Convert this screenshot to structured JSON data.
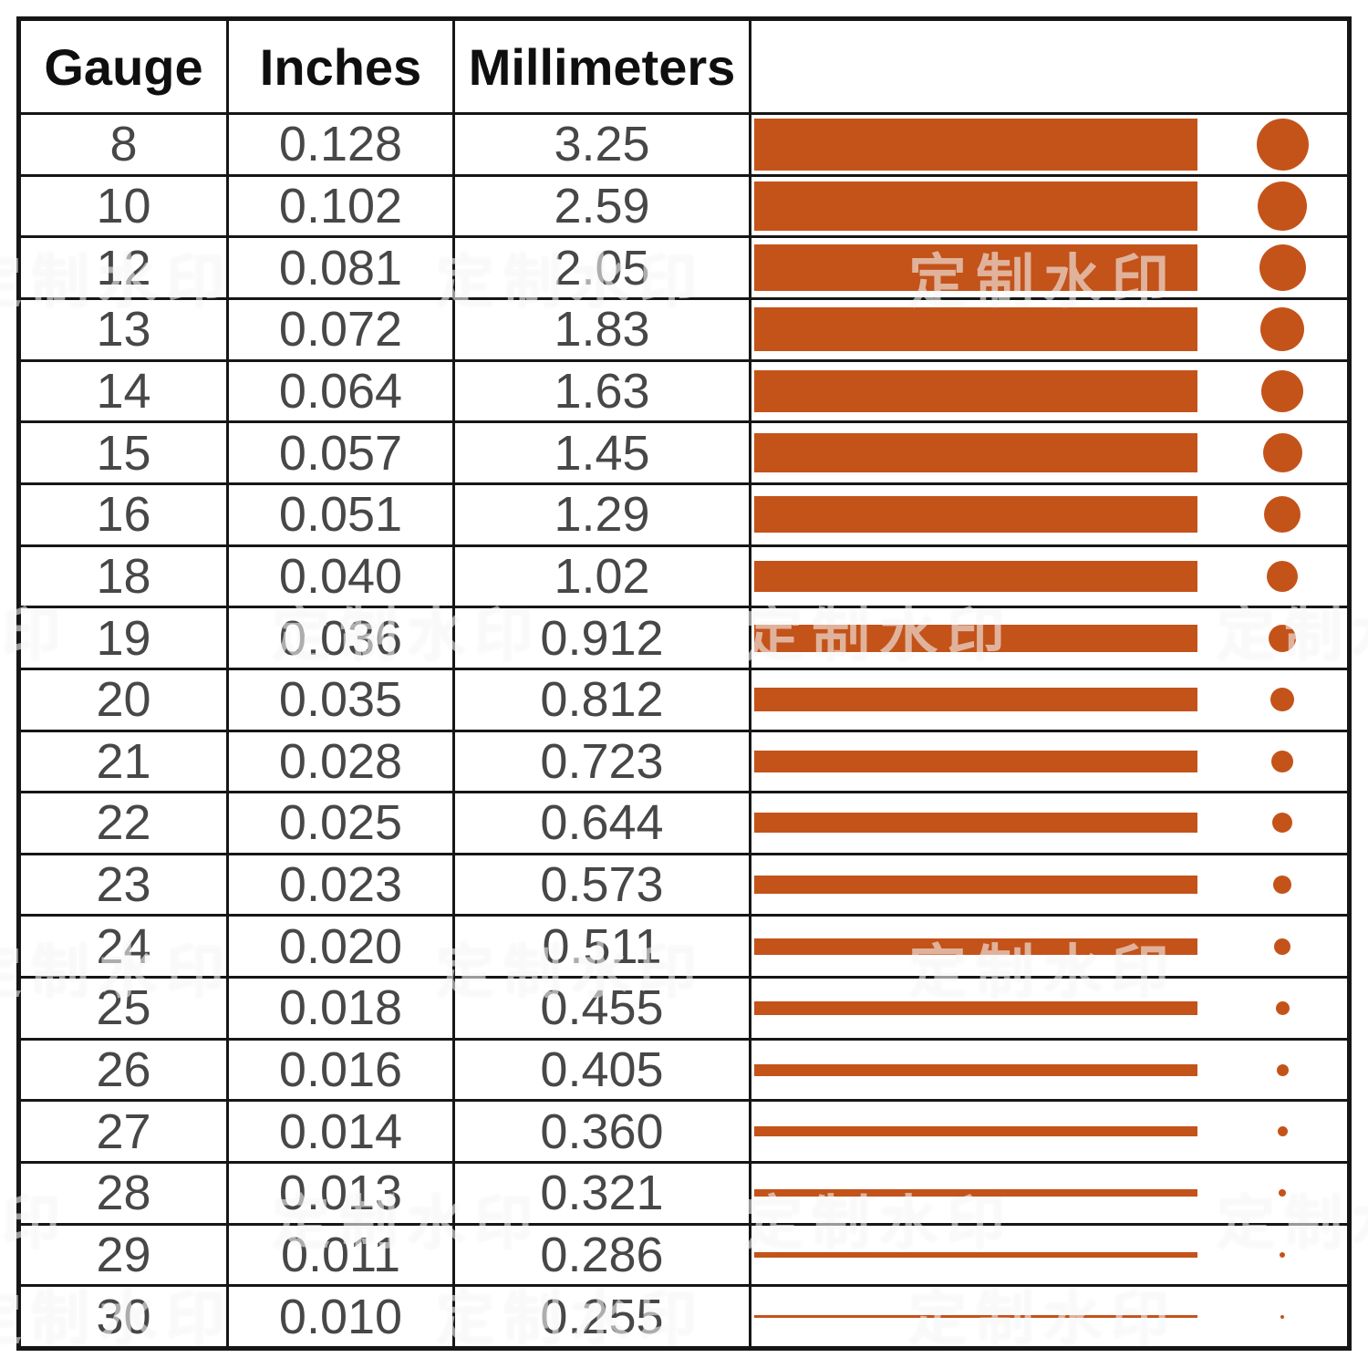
{
  "colors": {
    "bar": "#C4531A",
    "grid_line": "#161616",
    "header_text": "#0F0F0F",
    "value_text": "#474747",
    "background": "#FFFFFF"
  },
  "watermark": {
    "text": "定制水印"
  },
  "table": {
    "headers": [
      "Gauge",
      "Inches",
      "Millimeters",
      ""
    ],
    "rows": [
      {
        "gauge": "8",
        "inches": "0.128",
        "millimeters": "3.25",
        "mm": 3.25
      },
      {
        "gauge": "10",
        "inches": "0.102",
        "millimeters": "2.59",
        "mm": 2.59
      },
      {
        "gauge": "12",
        "inches": "0.081",
        "millimeters": "2.05",
        "mm": 2.05
      },
      {
        "gauge": "13",
        "inches": "0.072",
        "millimeters": "1.83",
        "mm": 1.83
      },
      {
        "gauge": "14",
        "inches": "0.064",
        "millimeters": "1.63",
        "mm": 1.63
      },
      {
        "gauge": "15",
        "inches": "0.057",
        "millimeters": "1.45",
        "mm": 1.45
      },
      {
        "gauge": "16",
        "inches": "0.051",
        "millimeters": "1.29",
        "mm": 1.29
      },
      {
        "gauge": "18",
        "inches": "0.040",
        "millimeters": "1.02",
        "mm": 1.02
      },
      {
        "gauge": "19",
        "inches": "0.036",
        "millimeters": "0.912",
        "mm": 0.912
      },
      {
        "gauge": "20",
        "inches": "0.035",
        "millimeters": "0.812",
        "mm": 0.812
      },
      {
        "gauge": "21",
        "inches": "0.028",
        "millimeters": "0.723",
        "mm": 0.723
      },
      {
        "gauge": "22",
        "inches": "0.025",
        "millimeters": "0.644",
        "mm": 0.644
      },
      {
        "gauge": "23",
        "inches": "0.023",
        "millimeters": "0.573",
        "mm": 0.573
      },
      {
        "gauge": "24",
        "inches": "0.020",
        "millimeters": "0.511",
        "mm": 0.511
      },
      {
        "gauge": "25",
        "inches": "0.018",
        "millimeters": "0.455",
        "mm": 0.455
      },
      {
        "gauge": "26",
        "inches": "0.016",
        "millimeters": "0.405",
        "mm": 0.405
      },
      {
        "gauge": "27",
        "inches": "0.014",
        "millimeters": "0.360",
        "mm": 0.36
      },
      {
        "gauge": "28",
        "inches": "0.013",
        "millimeters": "0.321",
        "mm": 0.321
      },
      {
        "gauge": "29",
        "inches": "0.011",
        "millimeters": "0.286",
        "mm": 0.286
      },
      {
        "gauge": "30",
        "inches": "0.010",
        "millimeters": "0.255",
        "mm": 0.255
      }
    ]
  },
  "chart_data": {
    "type": "table",
    "columns": [
      "Gauge",
      "Inches",
      "Millimeters"
    ],
    "rows": [
      [
        8,
        0.128,
        3.25
      ],
      [
        10,
        0.102,
        2.59
      ],
      [
        12,
        0.081,
        2.05
      ],
      [
        13,
        0.072,
        1.83
      ],
      [
        14,
        0.064,
        1.63
      ],
      [
        15,
        0.057,
        1.45
      ],
      [
        16,
        0.051,
        1.29
      ],
      [
        18,
        0.04,
        1.02
      ],
      [
        19,
        0.036,
        0.912
      ],
      [
        20,
        0.035,
        0.812
      ],
      [
        21,
        0.028,
        0.723
      ],
      [
        22,
        0.025,
        0.644
      ],
      [
        23,
        0.023,
        0.573
      ],
      [
        24,
        0.02,
        0.511
      ],
      [
        25,
        0.018,
        0.455
      ],
      [
        26,
        0.016,
        0.405
      ],
      [
        27,
        0.014,
        0.36
      ],
      [
        28,
        0.013,
        0.321
      ],
      [
        29,
        0.011,
        0.286
      ],
      [
        30,
        0.01,
        0.255
      ]
    ],
    "visual_encoding": "Each data row has an orange horizontal bar (left) and an orange filled circle (right); bar thickness and circle diameter decrease with the wire diameter in millimeters",
    "legend_position": "none",
    "grid": "table borders on"
  }
}
